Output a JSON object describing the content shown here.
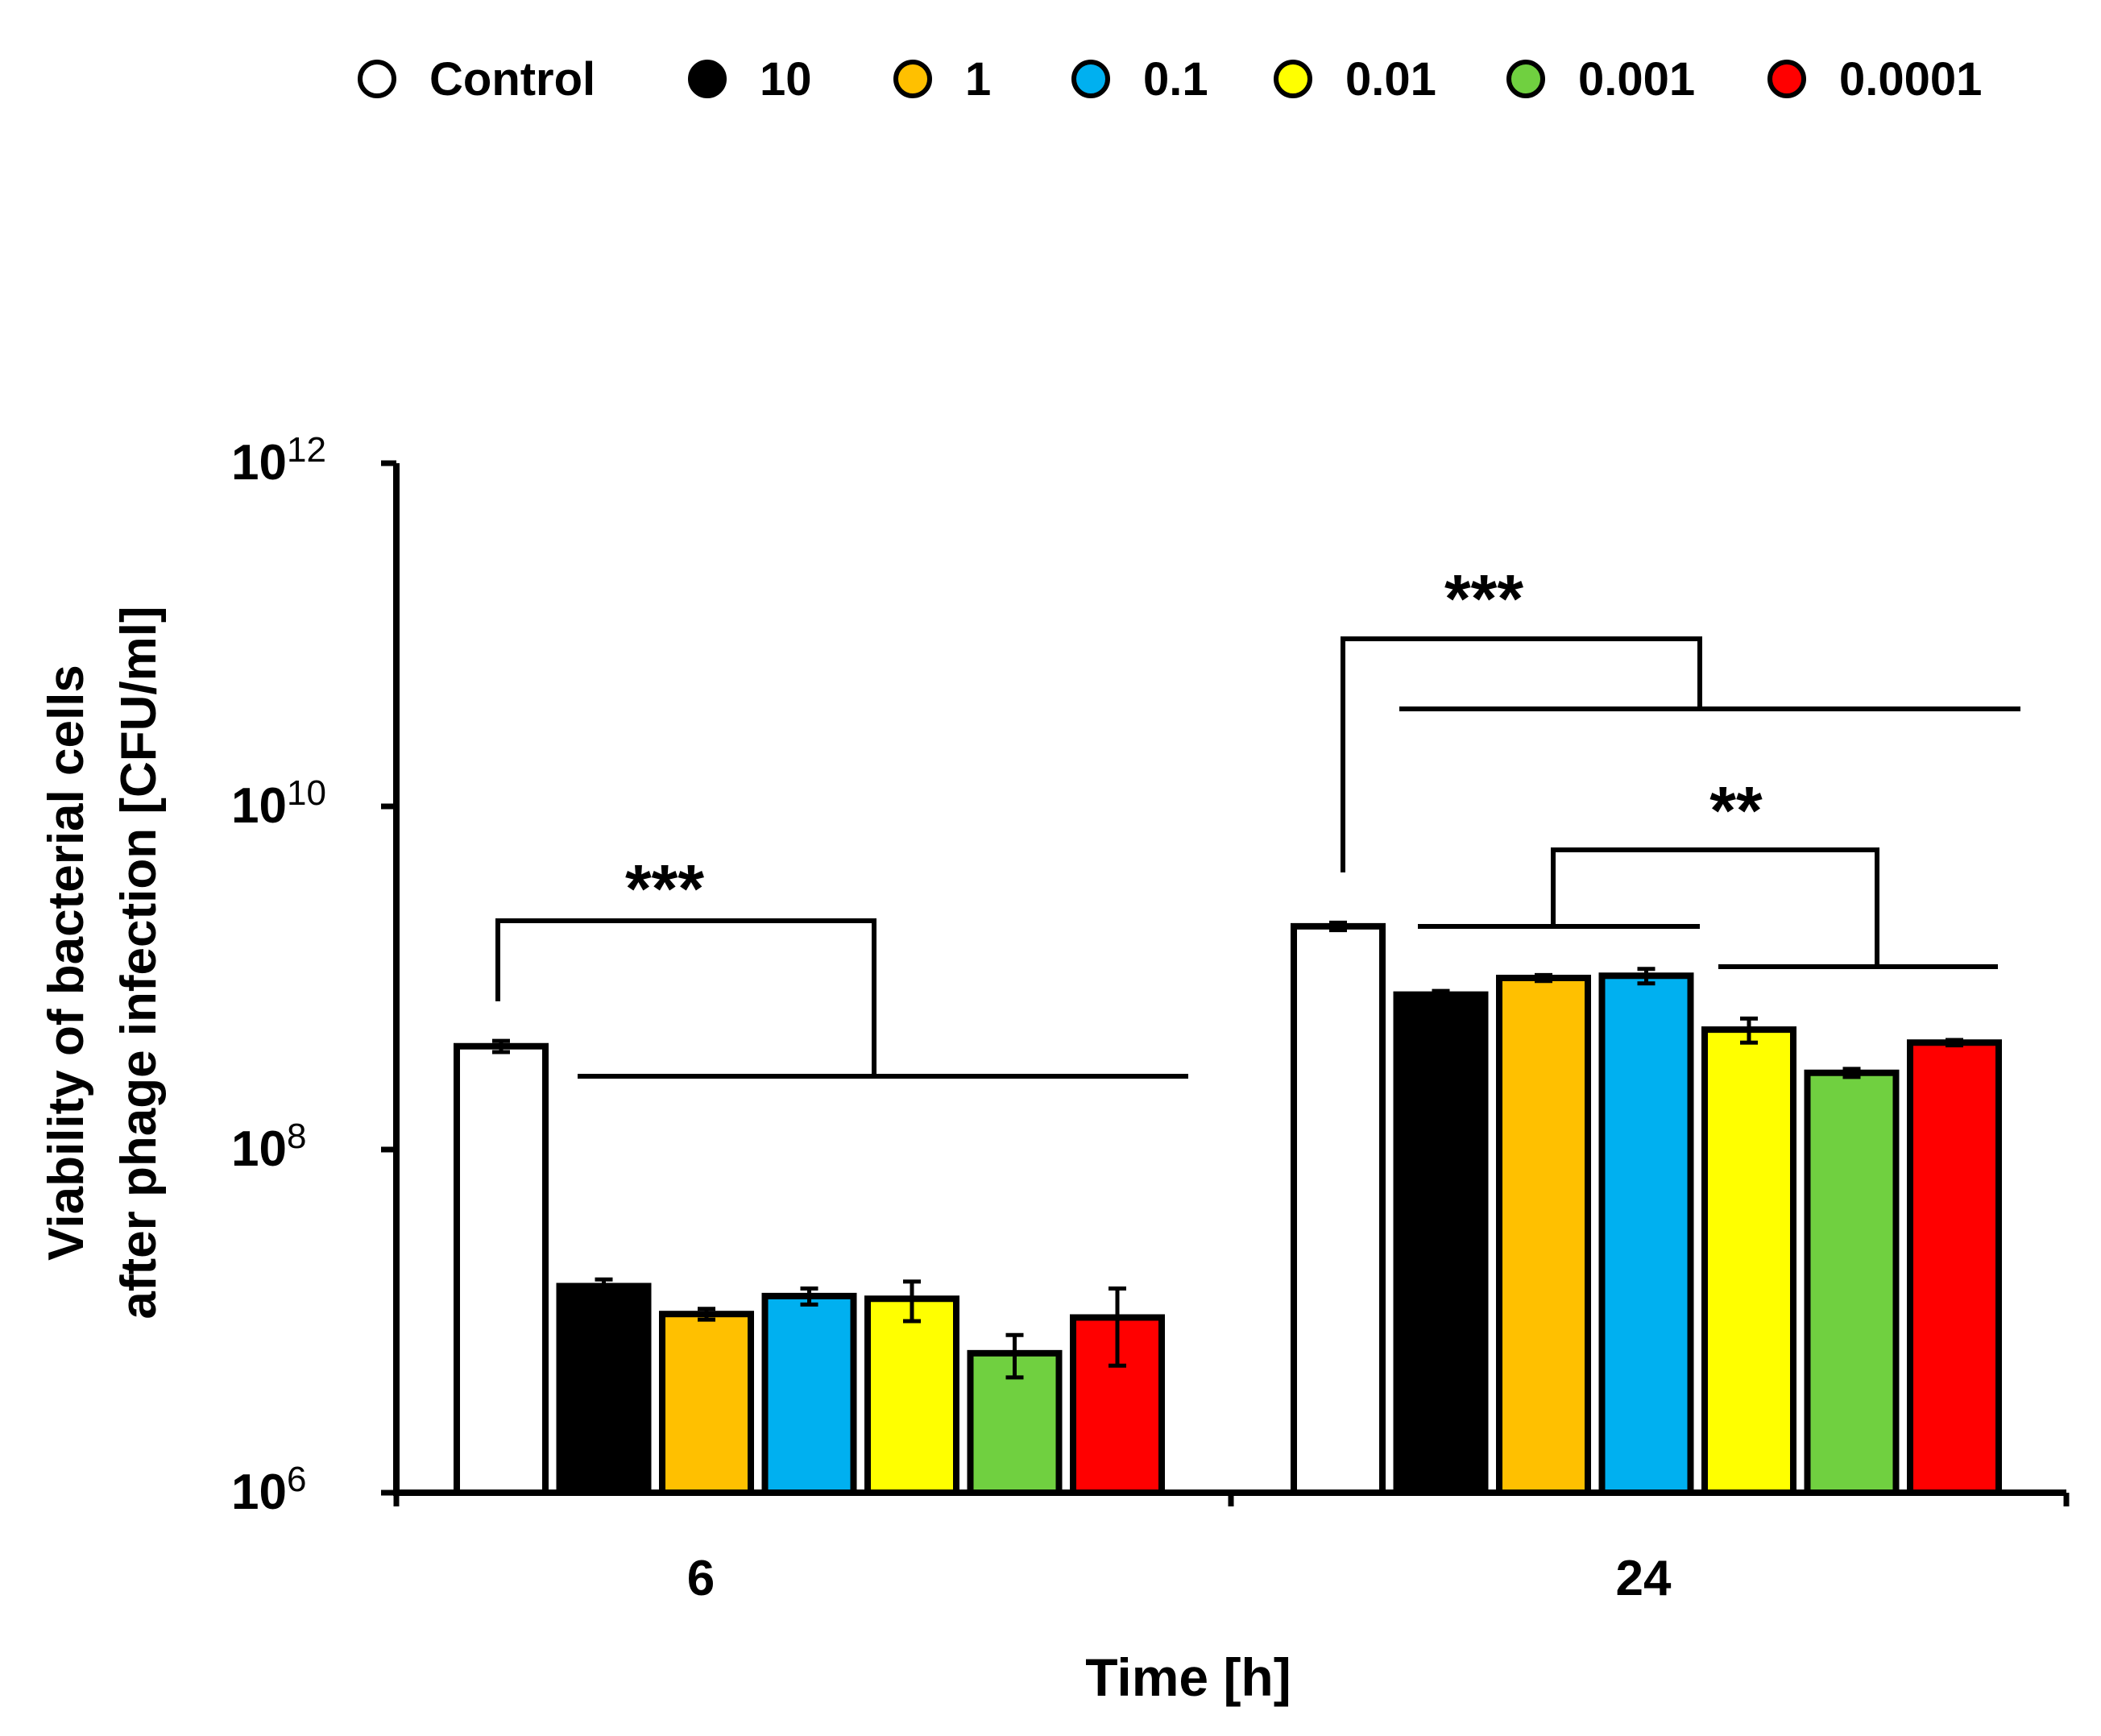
{
  "chart_data": {
    "type": "bar",
    "scale": "log10",
    "xlabel": "Time [h]",
    "ylabel_line1": "Viability of bacterial cells",
    "ylabel_line2": "after phage infection [CFU/ml]",
    "categories": [
      "6",
      "24"
    ],
    "ylim": [
      1000000,
      1000000000000
    ],
    "yticks": [
      {
        "base": "10",
        "exp": "6",
        "value": 1000000
      },
      {
        "base": "10",
        "exp": "8",
        "value": 100000000
      },
      {
        "base": "10",
        "exp": "10",
        "value": 10000000000
      },
      {
        "base": "10",
        "exp": "12",
        "value": 1000000000000
      }
    ],
    "legend_position": "top",
    "series": [
      {
        "name": "Control",
        "color": "#ffffff",
        "values": [
          400000000,
          2000000000
        ],
        "errors": [
          30000000,
          100000000
        ]
      },
      {
        "name": "10",
        "color": "#000000",
        "values": [
          16000000,
          800000000
        ],
        "errors": [
          1500000,
          40000000
        ]
      },
      {
        "name": "1",
        "color": "#ffc000",
        "values": [
          11000000,
          1000000000
        ],
        "errors": [
          800000,
          40000000
        ]
      },
      {
        "name": "0.1",
        "color": "#00b0f0",
        "values": [
          14000000,
          1030000000
        ],
        "errors": [
          1500000,
          100000000
        ]
      },
      {
        "name": "0.01",
        "color": "#ffff00",
        "values": [
          13500000,
          500000000
        ],
        "errors": [
          3500000,
          80000000
        ]
      },
      {
        "name": "0.001",
        "color": "#70d040",
        "values": [
          6500000,
          280000000
        ],
        "errors": [
          1800000,
          15000000
        ]
      },
      {
        "name": "0.0001",
        "color": "#ff0000",
        "values": [
          10500000,
          420000000
        ],
        "errors": [
          5000000,
          15000000
        ]
      }
    ],
    "annotations": [
      {
        "label": "***",
        "group": "6",
        "compare": "Control vs all phage doses"
      },
      {
        "label": "***",
        "group": "24",
        "compare": "Control vs all phage doses"
      },
      {
        "label": "**",
        "group": "24",
        "compare": "10, 1, 0.1 vs 0.01, 0.001, 0.0001"
      }
    ]
  }
}
